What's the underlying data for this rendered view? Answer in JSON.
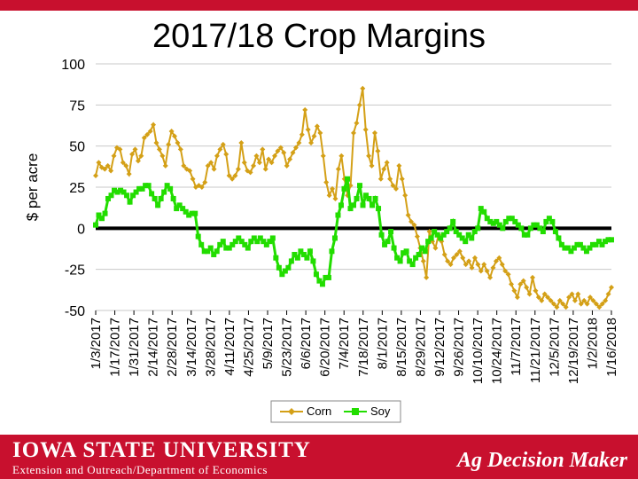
{
  "header": {
    "title": "2017/18 Crop Margins"
  },
  "footer": {
    "university": "IOWA STATE UNIVERSITY",
    "department": "Extension and Outreach/Department of Economics",
    "brand": "Ag Decision Maker"
  },
  "colors": {
    "corn": "#d4a017",
    "soy": "#22dd00",
    "zero_line": "#000000",
    "brand_red": "#c8102e"
  },
  "chart_data": {
    "type": "line",
    "title": "2017/18 Crop Margins",
    "ylabel": "$ per acre",
    "xlabel": "",
    "ylim": [
      -50,
      100
    ],
    "yticks": [
      100,
      75,
      50,
      25,
      0,
      -25,
      -50
    ],
    "grid": true,
    "legend_position": "bottom",
    "zero_line": true,
    "x_tick_labels": [
      "1/3/2017",
      "1/17/2017",
      "1/31/2017",
      "2/14/2017",
      "2/28/2017",
      "3/14/2017",
      "3/28/2017",
      "4/11/2017",
      "4/25/2017",
      "5/9/2017",
      "5/23/2017",
      "6/6/2017",
      "6/20/2017",
      "7/4/2017",
      "7/18/2017",
      "8/1/2017",
      "8/15/2017",
      "8/29/2017",
      "9/12/2017",
      "9/26/2017",
      "10/10/2017",
      "10/24/2017",
      "11/7/2017",
      "11/21/2017",
      "12/5/2017",
      "12/19/2017",
      "1/2/2018",
      "1/16/2018"
    ],
    "series": [
      {
        "name": "Corn",
        "values": [
          32,
          40,
          37,
          36,
          38,
          35,
          44,
          49,
          48,
          40,
          38,
          33,
          45,
          48,
          41,
          44,
          55,
          57,
          59,
          63,
          52,
          48,
          44,
          38,
          51,
          59,
          56,
          52,
          48,
          38,
          36,
          35,
          30,
          25,
          26,
          25,
          28,
          38,
          40,
          36,
          44,
          48,
          51,
          45,
          32,
          30,
          32,
          36,
          52,
          40,
          35,
          34,
          38,
          44,
          40,
          48,
          36,
          42,
          40,
          44,
          47,
          49,
          46,
          38,
          42,
          46,
          49,
          52,
          57,
          72,
          60,
          52,
          56,
          62,
          58,
          44,
          28,
          20,
          24,
          18,
          36,
          44,
          30,
          20,
          26,
          58,
          64,
          75,
          85,
          60,
          44,
          38,
          58,
          47,
          30,
          36,
          40,
          30,
          26,
          24,
          38,
          30,
          20,
          8,
          4,
          2,
          -5,
          -12,
          -20,
          -30,
          -2,
          -8,
          -12,
          -4,
          -8,
          -16,
          -20,
          -22,
          -18,
          -16,
          -14,
          -18,
          -22,
          -20,
          -24,
          -18,
          -22,
          -26,
          -22,
          -26,
          -30,
          -24,
          -20,
          -18,
          -22,
          -26,
          -28,
          -34,
          -38,
          -42,
          -34,
          -32,
          -36,
          -40,
          -30,
          -38,
          -42,
          -44,
          -40,
          -42,
          -44,
          -46,
          -48,
          -44,
          -46,
          -48,
          -42,
          -40,
          -44,
          -40,
          -46,
          -44,
          -46,
          -42,
          -44,
          -46,
          -48,
          -46,
          -44,
          -40,
          -36
        ]
      },
      {
        "name": "Soy",
        "values": [
          2,
          8,
          6,
          9,
          18,
          20,
          23,
          22,
          23,
          22,
          20,
          16,
          20,
          22,
          24,
          24,
          26,
          26,
          21,
          18,
          14,
          18,
          22,
          26,
          24,
          18,
          12,
          14,
          12,
          10,
          8,
          9,
          9,
          -5,
          -10,
          -14,
          -14,
          -12,
          -16,
          -14,
          -10,
          -8,
          -12,
          -12,
          -10,
          -8,
          -6,
          -8,
          -10,
          -12,
          -8,
          -6,
          -8,
          -6,
          -8,
          -10,
          -8,
          -6,
          -18,
          -24,
          -28,
          -26,
          -24,
          -20,
          -16,
          -18,
          -14,
          -16,
          -18,
          -14,
          -20,
          -28,
          -32,
          -34,
          -30,
          -30,
          -14,
          -6,
          8,
          14,
          24,
          30,
          12,
          14,
          18,
          26,
          14,
          20,
          18,
          14,
          18,
          12,
          -4,
          -10,
          -8,
          -2,
          -12,
          -18,
          -20,
          -15,
          -14,
          -20,
          -22,
          -18,
          -16,
          -12,
          -14,
          -8,
          -6,
          -2,
          -4,
          -6,
          -4,
          -2,
          0,
          4,
          -2,
          -4,
          -6,
          -8,
          -4,
          -6,
          -2,
          0,
          12,
          10,
          6,
          4,
          3,
          4,
          2,
          0,
          4,
          6,
          6,
          4,
          2,
          0,
          -4,
          -4,
          0,
          2,
          2,
          0,
          -2,
          4,
          6,
          4,
          -2,
          -6,
          -10,
          -12,
          -12,
          -14,
          -12,
          -10,
          -10,
          -12,
          -14,
          -12,
          -10,
          -10,
          -8,
          -10,
          -8,
          -7,
          -7
        ]
      }
    ]
  }
}
